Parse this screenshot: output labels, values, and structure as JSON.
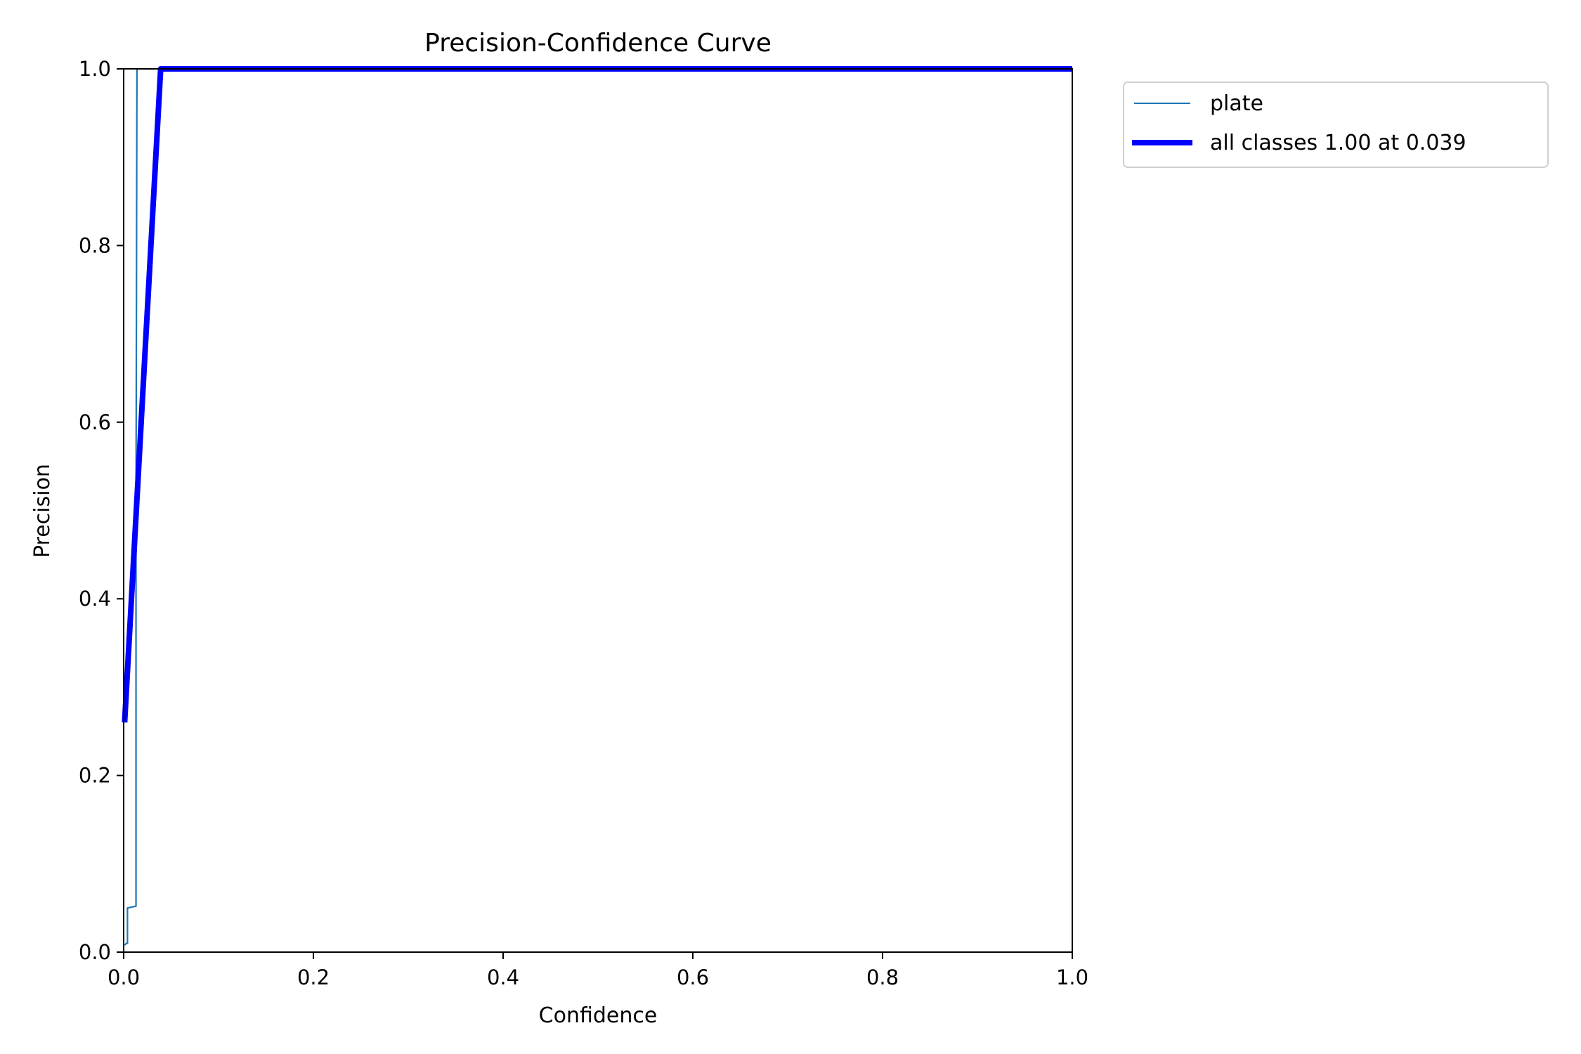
{
  "chart_data": {
    "type": "line",
    "title": "Precision-Confidence Curve",
    "xlabel": "Confidence",
    "ylabel": "Precision",
    "xlim": [
      0,
      1
    ],
    "ylim": [
      0,
      1
    ],
    "xticks": [
      "0.0",
      "0.2",
      "0.4",
      "0.6",
      "0.8",
      "1.0"
    ],
    "yticks": [
      "0.0",
      "0.2",
      "0.4",
      "0.6",
      "0.8",
      "1.0"
    ],
    "grid": false,
    "legend_position": "outside-top-right",
    "series": [
      {
        "name": "plate",
        "color": "#1f77b4",
        "x": [
          0.001,
          0.003,
          0.004,
          0.004,
          0.013,
          0.013,
          0.014,
          1.0
        ],
        "y": [
          0.008,
          0.01,
          0.01,
          0.05,
          0.052,
          0.5,
          1.0,
          1.0
        ]
      },
      {
        "name": "all classes 1.00 at 0.039",
        "color": "#0000ff",
        "x": [
          0.001,
          0.039,
          0.04,
          1.0
        ],
        "y": [
          0.26,
          1.0,
          1.0,
          1.0
        ]
      }
    ]
  }
}
